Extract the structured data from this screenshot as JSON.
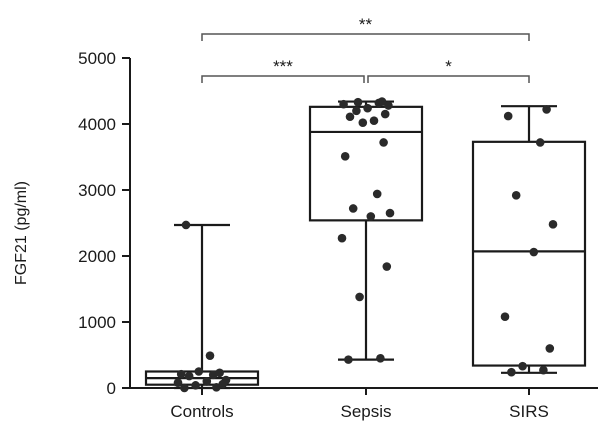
{
  "chart_data": {
    "type": "box",
    "ylabel": "FGF21 (pg/ml)",
    "xlabel": "",
    "ylim": [
      0,
      5000
    ],
    "yticks": [
      0,
      1000,
      2000,
      3000,
      4000,
      5000
    ],
    "categories": [
      "Controls",
      "Sepsis",
      "SIRS"
    ],
    "boxes": [
      {
        "name": "Controls",
        "whisker_low": 0,
        "q1": 50,
        "median": 150,
        "q3": 250,
        "whisker_high": 2470,
        "points": [
          0,
          10,
          40,
          60,
          80,
          100,
          120,
          180,
          200,
          210,
          230,
          250,
          490,
          2470
        ]
      },
      {
        "name": "Sepsis",
        "whisker_low": 430,
        "q1": 2540,
        "median": 3880,
        "q3": 4260,
        "whisker_high": 4340,
        "points": [
          430,
          450,
          1380,
          1840,
          2270,
          2600,
          2650,
          2720,
          2940,
          3510,
          3720,
          4020,
          4050,
          4110,
          4150,
          4200,
          4240,
          4280,
          4300,
          4320,
          4330,
          4340
        ]
      },
      {
        "name": "SIRS",
        "whisker_low": 230,
        "q1": 340,
        "median": 2070,
        "q3": 3730,
        "whisker_high": 4270,
        "points": [
          240,
          270,
          330,
          600,
          1080,
          2060,
          2480,
          2920,
          3720,
          4120,
          4220
        ]
      }
    ],
    "significance": [
      {
        "from": "Controls",
        "to": "Sepsis",
        "label": "***"
      },
      {
        "from": "Sepsis",
        "to": "SIRS",
        "label": "*"
      },
      {
        "from": "Controls",
        "to": "SIRS",
        "label": "**"
      }
    ],
    "grid": false,
    "legend": "none"
  }
}
